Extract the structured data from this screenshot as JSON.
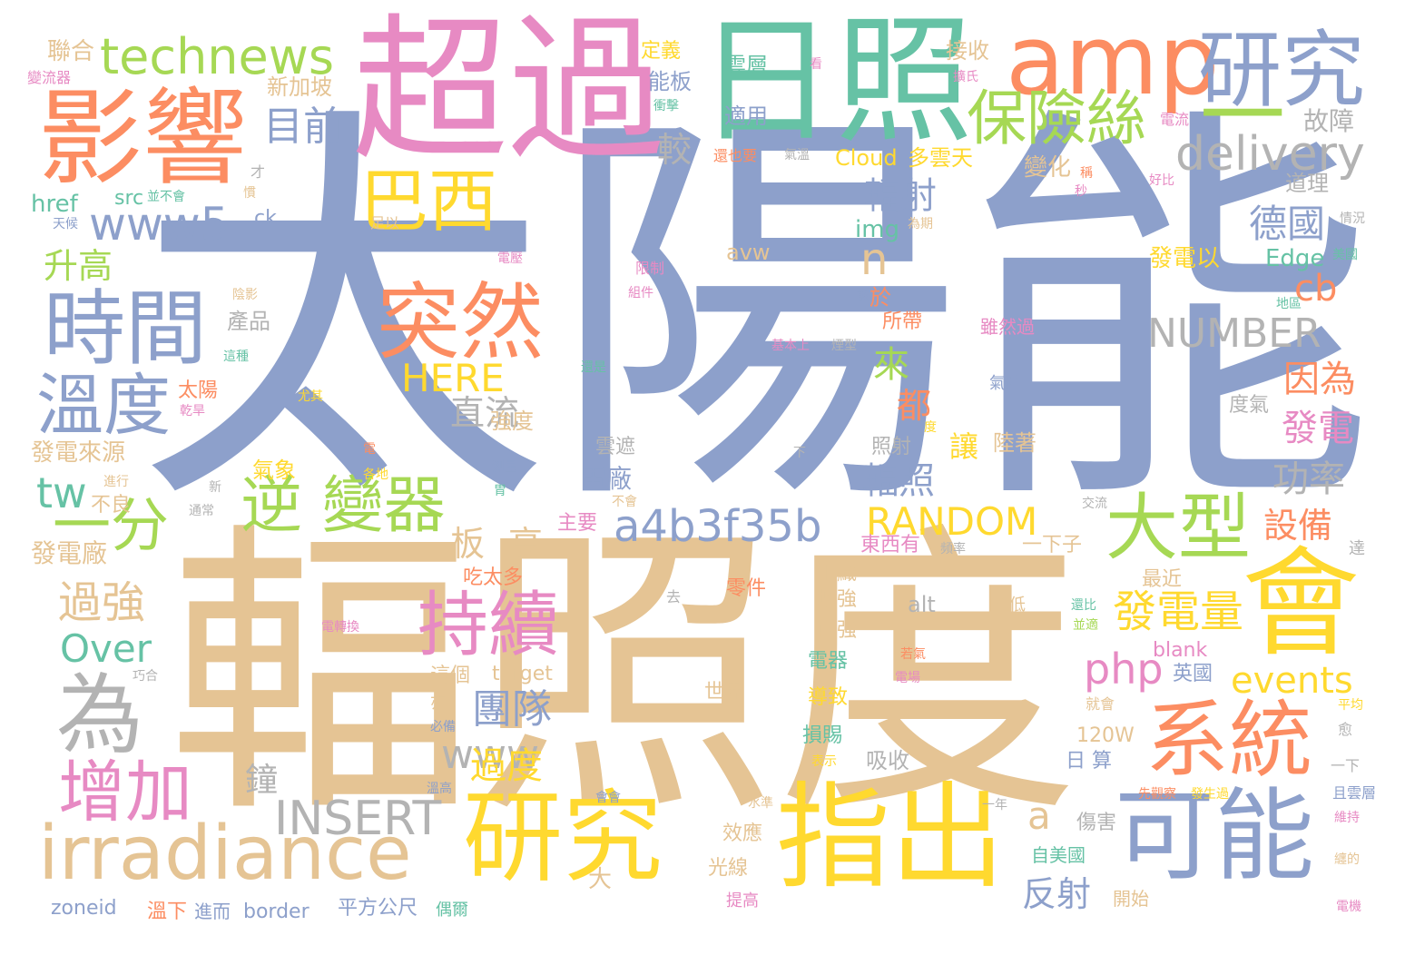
{
  "colors": {
    "blue": "#8da0cb",
    "tan": "#e5c494",
    "pink": "#e78ac3",
    "orange": "#fc8d62",
    "yellow": "#ffd92f",
    "green": "#a6d854",
    "teal": "#66c2a5",
    "gray": "#b3b3b3"
  },
  "words": [
    {
      "text": "太陽能",
      "color": "blue"
    },
    {
      "text": "輻照度",
      "color": "tan"
    },
    {
      "text": "超過",
      "color": "pink"
    },
    {
      "text": "日照",
      "color": "teal"
    },
    {
      "text": "影響",
      "color": "orange"
    },
    {
      "text": "amp",
      "color": "orange"
    },
    {
      "text": "研究",
      "color": "blue"
    },
    {
      "text": "一",
      "color": "green"
    },
    {
      "text": "technews",
      "color": "green"
    },
    {
      "text": "巴西",
      "color": "yellow"
    },
    {
      "text": "保險絲",
      "color": "green"
    },
    {
      "text": "目前",
      "color": "blue"
    },
    {
      "text": "delivery",
      "color": "gray"
    },
    {
      "text": "時間",
      "color": "blue"
    },
    {
      "text": "溫度",
      "color": "blue"
    },
    {
      "text": "突然",
      "color": "orange"
    },
    {
      "text": "www5",
      "color": "blue"
    },
    {
      "text": "一分",
      "color": "green"
    },
    {
      "text": "逆 變器",
      "color": "green"
    },
    {
      "text": "持續",
      "color": "pink"
    },
    {
      "text": "大型",
      "color": "green"
    },
    {
      "text": "會",
      "color": "yellow"
    },
    {
      "text": "系統",
      "color": "orange"
    },
    {
      "text": "為",
      "color": "gray"
    },
    {
      "text": "增加",
      "color": "pink"
    },
    {
      "text": "irradiance",
      "color": "tan"
    },
    {
      "text": "研究",
      "color": "yellow"
    },
    {
      "text": "指出",
      "color": "yellow"
    },
    {
      "text": "可能",
      "color": "blue"
    },
    {
      "text": "a4b3f35b",
      "color": "blue"
    },
    {
      "text": "NUMBER",
      "color": "gray"
    },
    {
      "text": "RANDOM",
      "color": "yellow"
    },
    {
      "text": "INSERT",
      "color": "gray"
    },
    {
      "text": "HERE",
      "color": "yellow"
    },
    {
      "text": "www",
      "color": "gray"
    },
    {
      "text": "php",
      "color": "pink"
    },
    {
      "text": "events",
      "color": "yellow"
    },
    {
      "text": "發電量",
      "color": "yellow"
    },
    {
      "text": "團隊",
      "color": "blue"
    },
    {
      "text": "過度",
      "color": "yellow"
    },
    {
      "text": "過強",
      "color": "tan"
    },
    {
      "text": "Over",
      "color": "teal"
    },
    {
      "text": "tw",
      "color": "teal"
    },
    {
      "text": "cb",
      "color": "orange"
    },
    {
      "text": "n",
      "color": "tan"
    },
    {
      "text": "a",
      "color": "tan"
    },
    {
      "text": "德國",
      "color": "blue"
    },
    {
      "text": "因為",
      "color": "orange"
    },
    {
      "text": "發電",
      "color": "pink"
    },
    {
      "text": "設備",
      "color": "orange"
    },
    {
      "text": "功率",
      "color": "gray"
    },
    {
      "text": "輻射",
      "color": "blue"
    },
    {
      "text": "輻照",
      "color": "blue"
    },
    {
      "text": "直流",
      "color": "gray"
    },
    {
      "text": "升高",
      "color": "green"
    },
    {
      "text": "來",
      "color": "green"
    },
    {
      "text": "都",
      "color": "orange"
    },
    {
      "text": "板",
      "color": "tan"
    },
    {
      "text": "高",
      "color": "tan"
    },
    {
      "text": "較",
      "color": "gray"
    },
    {
      "text": "電廠",
      "color": "blue"
    },
    {
      "text": "反射",
      "color": "blue"
    },
    {
      "text": "讓",
      "color": "yellow"
    },
    {
      "text": "鐘",
      "color": "gray"
    },
    {
      "text": "雲層",
      "color": "teal"
    },
    {
      "text": "適用",
      "color": "blue"
    },
    {
      "text": "能板",
      "color": "blue"
    },
    {
      "text": "定義",
      "color": "yellow"
    },
    {
      "text": "接收",
      "color": "tan"
    },
    {
      "text": "新加坡",
      "color": "tan"
    },
    {
      "text": "故障",
      "color": "gray"
    },
    {
      "text": "變化",
      "color": "tan"
    },
    {
      "text": "Cloud",
      "color": "yellow"
    },
    {
      "text": "多雲天",
      "color": "yellow"
    },
    {
      "text": "道理",
      "color": "gray"
    },
    {
      "text": "聯合",
      "color": "tan"
    },
    {
      "text": "href",
      "color": "teal"
    },
    {
      "text": "src",
      "color": "teal"
    },
    {
      "text": "ck",
      "color": "blue"
    },
    {
      "text": "img",
      "color": "teal"
    },
    {
      "text": "avw",
      "color": "tan"
    },
    {
      "text": "Edge",
      "color": "teal"
    },
    {
      "text": "發電以",
      "color": "yellow"
    },
    {
      "text": "產品",
      "color": "gray"
    },
    {
      "text": "於",
      "color": "orange"
    },
    {
      "text": "所帶",
      "color": "orange"
    },
    {
      "text": "太陽",
      "color": "orange"
    },
    {
      "text": "雖然過",
      "color": "pink"
    },
    {
      "text": "氣時",
      "color": "blue"
    },
    {
      "text": "雲遮",
      "color": "gray"
    },
    {
      "text": "照射",
      "color": "gray"
    },
    {
      "text": "陸著",
      "color": "tan"
    },
    {
      "text": "強度",
      "color": "tan"
    },
    {
      "text": "發電來源",
      "color": "tan"
    },
    {
      "text": "氣象",
      "color": "yellow"
    },
    {
      "text": "主要",
      "color": "pink"
    },
    {
      "text": "東西有",
      "color": "pink"
    },
    {
      "text": "一下子",
      "color": "tan"
    },
    {
      "text": "發電廠",
      "color": "tan"
    },
    {
      "text": "不良",
      "color": "tan"
    },
    {
      "text": "吃太多",
      "color": "orange"
    },
    {
      "text": "零件",
      "color": "orange"
    },
    {
      "text": "組織",
      "color": "tan"
    },
    {
      "text": "增強",
      "color": "tan"
    },
    {
      "text": "愈強",
      "color": "tan"
    },
    {
      "text": "alt",
      "color": "gray"
    },
    {
      "text": "最近",
      "color": "tan"
    },
    {
      "text": "降低",
      "color": "tan"
    },
    {
      "text": "blank",
      "color": "pink"
    },
    {
      "text": "英國",
      "color": "blue"
    },
    {
      "text": "電器",
      "color": "teal"
    },
    {
      "text": "導致",
      "color": "yellow"
    },
    {
      "text": "世界",
      "color": "tan"
    },
    {
      "text": "這個",
      "color": "tan"
    },
    {
      "text": "target",
      "color": "tan"
    },
    {
      "text": "120W",
      "color": "tan"
    },
    {
      "text": "損賜",
      "color": "teal"
    },
    {
      "text": "吸收",
      "color": "gray"
    },
    {
      "text": "日 算",
      "color": "blue"
    },
    {
      "text": "效應",
      "color": "tan"
    },
    {
      "text": "光線",
      "color": "tan"
    },
    {
      "text": "傷害",
      "color": "gray"
    },
    {
      "text": "自美國",
      "color": "teal"
    },
    {
      "text": "開始",
      "color": "tan"
    },
    {
      "text": "平方公尺",
      "color": "blue"
    },
    {
      "text": "zoneid",
      "color": "blue"
    },
    {
      "text": "border",
      "color": "blue"
    },
    {
      "text": "溫下",
      "color": "orange"
    },
    {
      "text": "進而",
      "color": "blue"
    },
    {
      "text": "偶爾",
      "color": "teal"
    },
    {
      "text": "提高",
      "color": "pink"
    },
    {
      "text": "大",
      "color": "tan"
    },
    {
      "text": "看",
      "color": "pink"
    },
    {
      "text": "衝擊",
      "color": "teal"
    },
    {
      "text": "擴氏",
      "color": "pink"
    },
    {
      "text": "電流",
      "color": "pink"
    },
    {
      "text": "還也要",
      "color": "orange"
    },
    {
      "text": "氣溫",
      "color": "gray"
    },
    {
      "text": "秒",
      "color": "pink"
    },
    {
      "text": "好比",
      "color": "pink"
    },
    {
      "text": "情況",
      "color": "gray"
    },
    {
      "text": "美國",
      "color": "teal"
    },
    {
      "text": "限制",
      "color": "pink"
    },
    {
      "text": "組件",
      "color": "pink"
    },
    {
      "text": "為期",
      "color": "tan"
    },
    {
      "text": "地區",
      "color": "teal"
    },
    {
      "text": "基本上",
      "color": "pink"
    },
    {
      "text": "還是",
      "color": "teal"
    },
    {
      "text": "度氣",
      "color": "gray"
    },
    {
      "text": "交流",
      "color": "gray"
    },
    {
      "text": "頻率",
      "color": "gray"
    },
    {
      "text": "達",
      "color": "gray"
    },
    {
      "text": "電轉換",
      "color": "pink"
    },
    {
      "text": "巧合",
      "color": "gray"
    },
    {
      "text": "電場",
      "color": "pink"
    },
    {
      "text": "就會",
      "color": "tan"
    },
    {
      "text": "平均",
      "color": "yellow"
    },
    {
      "text": "愈",
      "color": "gray"
    },
    {
      "text": "一下",
      "color": "gray"
    },
    {
      "text": "且雲層",
      "color": "blue"
    },
    {
      "text": "維持",
      "color": "pink"
    },
    {
      "text": "纏的",
      "color": "tan"
    },
    {
      "text": "電機",
      "color": "pink"
    },
    {
      "text": "先觀察",
      "color": "orange"
    },
    {
      "text": "發生過",
      "color": "yellow"
    },
    {
      "text": "一年",
      "color": "gray"
    },
    {
      "text": "溫高",
      "color": "blue"
    },
    {
      "text": "水準",
      "color": "tan"
    },
    {
      "text": "會會",
      "color": "blue"
    },
    {
      "text": "必備",
      "color": "blue"
    },
    {
      "text": "亦",
      "color": "tan"
    },
    {
      "text": "表示",
      "color": "yellow"
    },
    {
      "text": "變流器",
      "color": "pink"
    },
    {
      "text": "才",
      "color": "gray"
    },
    {
      "text": "並不會",
      "color": "teal"
    },
    {
      "text": "天候",
      "color": "blue"
    },
    {
      "text": "足以",
      "color": "tan"
    },
    {
      "text": "電壓",
      "color": "pink"
    },
    {
      "text": "陰影",
      "color": "tan"
    },
    {
      "text": "這種",
      "color": "teal"
    },
    {
      "text": "尤其",
      "color": "yellow"
    },
    {
      "text": "乾旱",
      "color": "pink"
    },
    {
      "text": "進行",
      "color": "tan"
    },
    {
      "text": "通常",
      "color": "gray"
    },
    {
      "text": "各地",
      "color": "yellow"
    },
    {
      "text": "新",
      "color": "gray"
    },
    {
      "text": "電",
      "color": "orange"
    },
    {
      "text": "測量",
      "color": "blue"
    },
    {
      "text": "胃",
      "color": "teal"
    },
    {
      "text": "不會",
      "color": "tan"
    },
    {
      "text": "下",
      "color": "gray"
    },
    {
      "text": "去",
      "color": "gray"
    },
    {
      "text": "若氣",
      "color": "orange"
    },
    {
      "text": "還比",
      "color": "teal"
    },
    {
      "text": "並適",
      "color": "green"
    },
    {
      "text": "該",
      "color": "blue"
    },
    {
      "text": "慣",
      "color": "tan"
    },
    {
      "text": "度",
      "color": "yellow"
    },
    {
      "text": "稱",
      "color": "orange"
    },
    {
      "text": "煙型",
      "color": "gray"
    }
  ]
}
